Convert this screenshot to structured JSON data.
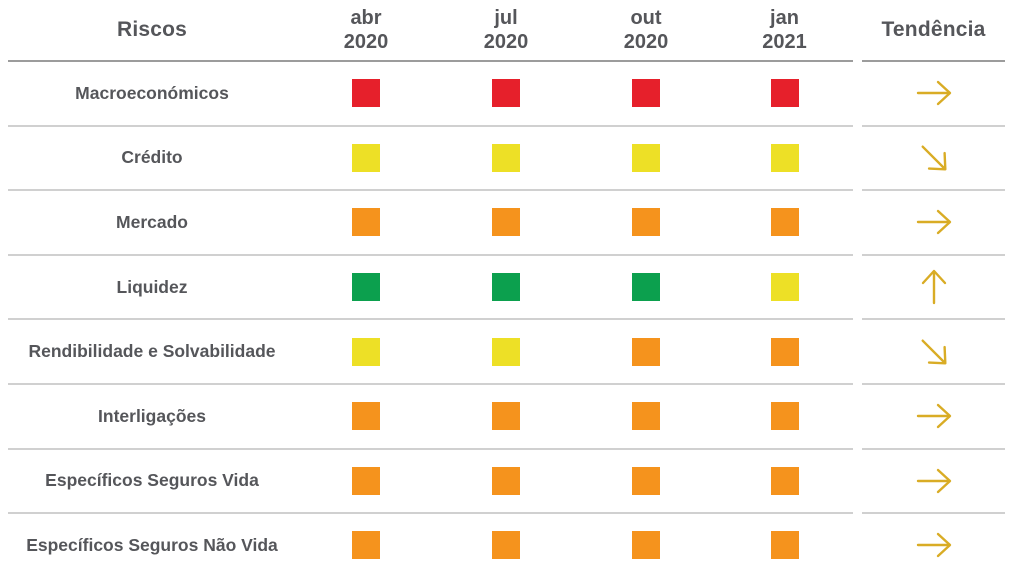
{
  "table": {
    "header": {
      "riscos": "Riscos",
      "periods": [
        {
          "line1": "abr",
          "line2": "2020"
        },
        {
          "line1": "jul",
          "line2": "2020"
        },
        {
          "line1": "out",
          "line2": "2020"
        },
        {
          "line1": "jan",
          "line2": "2021"
        }
      ],
      "tendencia": "Tendência"
    },
    "legend_colors": {
      "red": "#E6202B",
      "yellow": "#EDE026",
      "orange": "#F5931D",
      "green": "#0CA04E"
    },
    "trend_arrow_color": "#D9AC25",
    "text_color": "#55565A",
    "rows": [
      {
        "label": "Macroeconómicos",
        "levels": [
          "red",
          "red",
          "red",
          "red"
        ],
        "trend": "right"
      },
      {
        "label": "Crédito",
        "levels": [
          "yellow",
          "yellow",
          "yellow",
          "yellow"
        ],
        "trend": "down-right"
      },
      {
        "label": "Mercado",
        "levels": [
          "orange",
          "orange",
          "orange",
          "orange"
        ],
        "trend": "right"
      },
      {
        "label": "Liquidez",
        "levels": [
          "green",
          "green",
          "green",
          "yellow"
        ],
        "trend": "up"
      },
      {
        "label": "Rendibilidade e Solvabilidade",
        "levels": [
          "yellow",
          "yellow",
          "orange",
          "orange"
        ],
        "trend": "down-right"
      },
      {
        "label": "Interligações",
        "levels": [
          "orange",
          "orange",
          "orange",
          "orange"
        ],
        "trend": "right"
      },
      {
        "label": "Específicos Seguros Vida",
        "levels": [
          "orange",
          "orange",
          "orange",
          "orange"
        ],
        "trend": "right"
      },
      {
        "label": "Específicos Seguros Não Vida",
        "levels": [
          "orange",
          "orange",
          "orange",
          "orange"
        ],
        "trend": "right"
      }
    ]
  },
  "chart_data": {
    "type": "heatmap",
    "title": "Riscos",
    "categories_x": [
      "abr 2020",
      "jul 2020",
      "out 2020",
      "jan 2021"
    ],
    "categories_y": [
      "Macroeconómicos",
      "Crédito",
      "Mercado",
      "Liquidez",
      "Rendibilidade e Solvabilidade",
      "Interligações",
      "Específicos Seguros Vida",
      "Específicos Seguros Não Vida"
    ],
    "values": [
      [
        "red",
        "red",
        "red",
        "red"
      ],
      [
        "yellow",
        "yellow",
        "yellow",
        "yellow"
      ],
      [
        "orange",
        "orange",
        "orange",
        "orange"
      ],
      [
        "green",
        "green",
        "green",
        "yellow"
      ],
      [
        "yellow",
        "yellow",
        "orange",
        "orange"
      ],
      [
        "orange",
        "orange",
        "orange",
        "orange"
      ],
      [
        "orange",
        "orange",
        "orange",
        "orange"
      ],
      [
        "orange",
        "orange",
        "orange",
        "orange"
      ]
    ],
    "color_map": {
      "red": "#E6202B",
      "yellow": "#EDE026",
      "orange": "#F5931D",
      "green": "#0CA04E"
    },
    "trend_column": {
      "label": "Tendência",
      "values": [
        "right",
        "down-right",
        "right",
        "up",
        "down-right",
        "right",
        "right",
        "right"
      ]
    },
    "legend_position": "none",
    "grid": "row-dividers"
  }
}
